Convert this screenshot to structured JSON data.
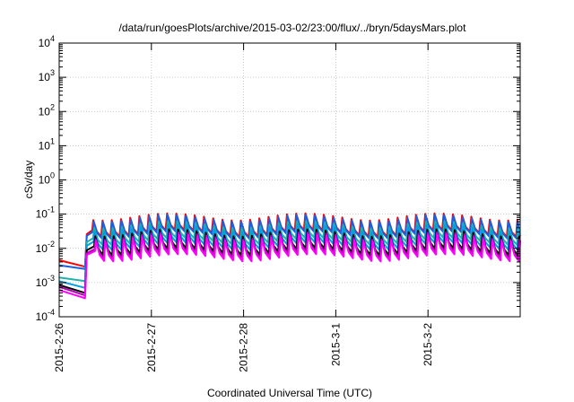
{
  "chart_data": {
    "type": "line",
    "title": "/data/run/goesPlots/archive/2015-03-02/23:00/flux/../bryn/5daysMars.plot",
    "xlabel": "Coordinated Universal Time (UTC)",
    "ylabel": "cSv/day",
    "x_unit": "days from 2015-2-26 00:00 UTC",
    "xlim": [
      0,
      5
    ],
    "y_scale": "log",
    "ylim": [
      0.0001,
      10000
    ],
    "grid": true,
    "legend": "none",
    "x_ticks": [
      {
        "value": 0,
        "label": "2015-2-26"
      },
      {
        "value": 1,
        "label": "2015-2-27"
      },
      {
        "value": 2,
        "label": "2015-2-28"
      },
      {
        "value": 3,
        "label": "2015-3-1"
      },
      {
        "value": 4,
        "label": "2015-3-2"
      }
    ],
    "y_ticks": [
      {
        "value": 0.0001,
        "base": "10",
        "exp": "-4"
      },
      {
        "value": 0.001,
        "base": "10",
        "exp": "-3"
      },
      {
        "value": 0.01,
        "base": "10",
        "exp": "-2"
      },
      {
        "value": 0.1,
        "base": "10",
        "exp": "-1"
      },
      {
        "value": 1,
        "base": "10",
        "exp": "0"
      },
      {
        "value": 10,
        "base": "10",
        "exp": "1"
      },
      {
        "value": 100,
        "base": "10",
        "exp": "2"
      },
      {
        "value": 1000,
        "base": "10",
        "exp": "3"
      },
      {
        "value": 10000,
        "base": "10",
        "exp": "4"
      }
    ],
    "pattern": {
      "pre_event_end": 0.28,
      "onset": 0.3,
      "cycle_days": 0.1,
      "first_peak": 0.37,
      "last_peak": 4.97,
      "phase_per_series": 0.005
    },
    "series": [
      {
        "color": "#ff0000",
        "pre": [
          0.0045,
          0.0029
        ],
        "peak_lo": 0.065,
        "peak_hi": 0.105,
        "trough_ratio": 0.33
      },
      {
        "color": "#1e5fe0",
        "pre": [
          0.0032,
          0.0025
        ],
        "peak_lo": 0.058,
        "peak_hi": 0.095,
        "trough_ratio": 0.33
      },
      {
        "color": "#20b2aa",
        "pre": [
          0.0014,
          0.0011
        ],
        "peak_lo": 0.038,
        "peak_hi": 0.062,
        "trough_ratio": 0.33
      },
      {
        "color": "#00a0e0",
        "pre": [
          0.0011,
          0.0007
        ],
        "peak_lo": 0.03,
        "peak_hi": 0.05,
        "trough_ratio": 0.3
      },
      {
        "color": "#000000",
        "pre": [
          0.00085,
          0.0005
        ],
        "peak_lo": 0.022,
        "peak_hi": 0.036,
        "trough_ratio": 0.28
      },
      {
        "color": "#b000b0",
        "pre": [
          0.00075,
          0.00042
        ],
        "peak_lo": 0.018,
        "peak_hi": 0.03,
        "trough_ratio": 0.27
      },
      {
        "color": "#ff00ff",
        "pre": [
          0.0006,
          0.00035
        ],
        "peak_lo": 0.016,
        "peak_hi": 0.026,
        "trough_ratio": 0.26
      }
    ]
  }
}
